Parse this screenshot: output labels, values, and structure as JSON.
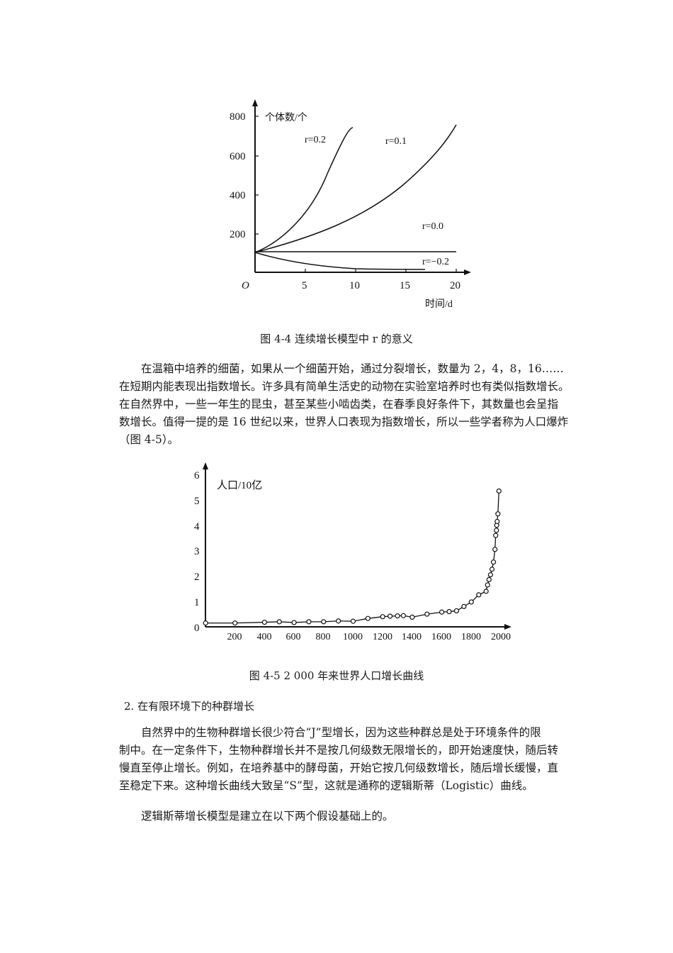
{
  "figure_4_4": {
    "caption": "图 4-4 连续增长模型中 r 的意义",
    "y_label": "个体数/个",
    "x_label": "时间/d",
    "origin_label": "O",
    "y_ticks": [
      "200",
      "400",
      "600",
      "800"
    ],
    "x_ticks": [
      "5",
      "10",
      "15",
      "20"
    ],
    "curve_labels": [
      "r=0.2",
      "r=0.1",
      "r=0.0",
      "r=−0.2"
    ]
  },
  "paragraph_1": {
    "lines": [
      "　　在温箱中培养的细菌，如果从一个细菌开始，通过分裂增长，数量为 2，4，8，16……",
      "在短期内能表现出指数增长。许多具有简单生活史的动物在实验室培养时也有类似指数增长。",
      "在自然界中，一些一年生的昆虫，甚至某些小啮齿类，在春季良好条件下，其数量也会呈指",
      "数增长。值得一提的是 16 世纪以来，世界人口表现为指数增长，所以一些学者称为人口爆炸",
      "（图 4-5）。"
    ]
  },
  "figure_4_5": {
    "caption": "图 4-5 2 000 年来世界人口增长曲线",
    "y_label": "人口/10亿",
    "y_ticks": [
      "0",
      "1",
      "2",
      "3",
      "4",
      "5",
      "6"
    ],
    "x_ticks": [
      "200",
      "400",
      "600",
      "800",
      "1000",
      "1200",
      "1400",
      "1600",
      "1800",
      "2000"
    ]
  },
  "section_heading": "2. 在有限环境下的种群增长",
  "paragraph_2": {
    "lines": [
      "　　自然界中的生物种群增长很少符合“J”型增长，因为这些种群总是处于环境条件的限",
      "制中。在一定条件下，生物种群增长并不是按几何级数无限增长的，即开始速度快，随后转",
      "慢直至停止增长。例如，在培养基中的酵母菌，开始它按几何级数增长，随后增长缓慢，直",
      "至稳定下来。这种增长曲线大致呈“S”型，这就是通称的逻辑斯蒂（Logistic）曲线。"
    ]
  },
  "paragraph_3": {
    "lines": [
      "　　逻辑斯蒂增长模型是建立在以下两个假设基础上的。"
    ]
  },
  "chart_data": [
    {
      "type": "line",
      "title": "图 4-4 连续增长模型中 r 的意义",
      "xlabel": "时间/d",
      "ylabel": "个体数/个",
      "xlim": [
        0,
        20
      ],
      "ylim": [
        0,
        850
      ],
      "grid": false,
      "series": [
        {
          "name": "r=0.2",
          "x": [
            0,
            2,
            4,
            6,
            8,
            10
          ],
          "values": [
            100,
            149,
            223,
            332,
            495,
            739
          ]
        },
        {
          "name": "r=0.1",
          "x": [
            0,
            5,
            10,
            15,
            20
          ],
          "values": [
            100,
            165,
            272,
            448,
            739
          ]
        },
        {
          "name": "r=0.0",
          "x": [
            0,
            20
          ],
          "values": [
            100,
            100
          ]
        },
        {
          "name": "r=-0.2",
          "x": [
            0,
            5,
            10,
            15,
            17
          ],
          "values": [
            100,
            37,
            14,
            5,
            3
          ]
        }
      ]
    },
    {
      "type": "line",
      "title": "图 4-5 2 000 年来世界人口增长曲线",
      "xlabel": "",
      "ylabel": "人口/10亿",
      "xlim": [
        0,
        2050
      ],
      "ylim": [
        0,
        6.2
      ],
      "grid": false,
      "x": [
        1,
        200,
        400,
        500,
        600,
        700,
        800,
        900,
        1000,
        1100,
        1200,
        1250,
        1300,
        1340,
        1400,
        1500,
        1600,
        1650,
        1700,
        1750,
        1800,
        1850,
        1900,
        1910,
        1920,
        1930,
        1940,
        1950,
        1960,
        1965,
        1970,
        1972,
        1975,
        1980,
        1987
      ],
      "values": [
        0.15,
        0.15,
        0.18,
        0.2,
        0.17,
        0.2,
        0.2,
        0.23,
        0.22,
        0.33,
        0.4,
        0.42,
        0.43,
        0.44,
        0.38,
        0.5,
        0.58,
        0.6,
        0.63,
        0.8,
        0.98,
        1.26,
        1.4,
        1.65,
        1.86,
        2.05,
        2.27,
        2.55,
        3.05,
        3.6,
        3.8,
        4.0,
        4.15,
        4.45,
        5.35
      ]
    }
  ]
}
